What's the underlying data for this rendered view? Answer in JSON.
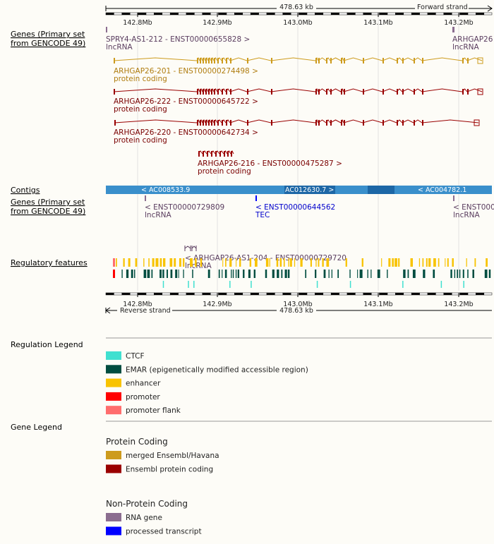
{
  "header": {
    "span": "478.63 kb",
    "forward_strand": "Forward strand",
    "reverse_strand": "Reverse strand"
  },
  "scale_ticks": [
    "142.8Mb",
    "142.9Mb",
    "143.0Mb",
    "143.1Mb",
    "143.2Mb"
  ],
  "tracks": {
    "genes_forward": {
      "label_lines": [
        "Genes (Primary set",
        "from GENCODE 49)"
      ],
      "transcripts": [
        {
          "name": "SPRY4-AS1-212 - ENST00000655828 >",
          "biotype": "lncRNA"
        },
        {
          "name": "ARHGAP26",
          "biotype": "lncRNA"
        },
        {
          "name": "ARHGAP26-201 - ENST00000274498 >",
          "biotype": "protein coding"
        },
        {
          "name": "ARHGAP26-222 - ENST00000645722 >",
          "biotype": "protein coding"
        },
        {
          "name": "ARHGAP26-220 - ENST00000642734 >",
          "biotype": "protein coding"
        },
        {
          "name": "ARHGAP26-216 - ENST00000475287 >",
          "biotype": "protein coding"
        }
      ]
    },
    "contigs": {
      "label": "Contigs",
      "items": [
        "< AC008533.9",
        "AC012630.7 >",
        "< AC004782.1"
      ]
    },
    "genes_reverse": {
      "label_lines": [
        "Genes (Primary set",
        "from GENCODE 49)"
      ],
      "transcripts": [
        {
          "name": "< ENST00000729809",
          "biotype": "lncRNA"
        },
        {
          "name": "< ENST00000644562",
          "biotype": "TEC"
        },
        {
          "name": "< ENST0000",
          "biotype": "lncRNA"
        },
        {
          "name": "< ARHGAP26-AS1-204 - ENST00000729720",
          "biotype": "lncRNA"
        }
      ]
    },
    "regulatory": {
      "label": "Regulatory features"
    }
  },
  "regulation_legend": {
    "title": "Regulation Legend",
    "items": [
      {
        "label": "CTCF",
        "color": "#40e0d0"
      },
      {
        "label": "EMAR (epigenetically modified accessible region)",
        "color": "#004d40"
      },
      {
        "label": "enhancer",
        "color": "#f8c300"
      },
      {
        "label": "promoter",
        "color": "#ff0000"
      },
      {
        "label": "promoter flank",
        "color": "#ff6d6d"
      }
    ]
  },
  "gene_legend": {
    "title": "Gene Legend",
    "groups": [
      {
        "title": "Protein Coding",
        "items": [
          {
            "label": "merged Ensembl/Havana",
            "color": "#cd9b1d"
          },
          {
            "label": "Ensembl protein coding",
            "color": "#9a0000"
          }
        ]
      },
      {
        "title": "Non-Protein Coding",
        "items": [
          {
            "label": "RNA gene",
            "color": "#8b6d8f"
          },
          {
            "label": "processed transcript",
            "color": "#0000ff"
          }
        ]
      }
    ]
  }
}
